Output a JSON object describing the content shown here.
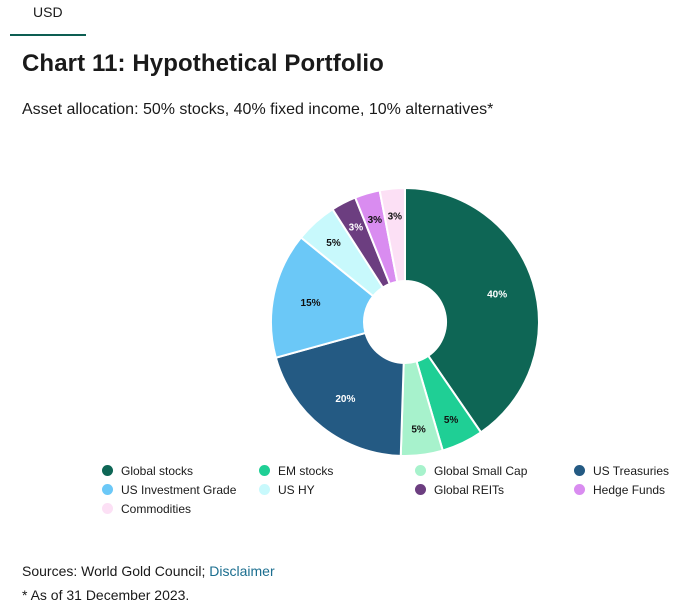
{
  "tab": {
    "label": "USD"
  },
  "header": {
    "title": "Chart 11: Hypothetical Portfolio",
    "subtitle": "Asset allocation: 50% stocks, 40% fixed income, 10% alternatives*"
  },
  "chart_data": {
    "type": "pie",
    "donut": true,
    "title": "Chart 11: Hypothetical Portfolio",
    "subtitle": "Asset allocation: 50% stocks, 40% fixed income, 10% alternatives*",
    "legend_position": "bottom",
    "slices": [
      {
        "name": "Global stocks",
        "value": 40,
        "label": "40%",
        "color": "#0e6655"
      },
      {
        "name": "EM stocks",
        "value": 5,
        "label": "5%",
        "color": "#1fcf95"
      },
      {
        "name": "Global Small Cap",
        "value": 5,
        "label": "5%",
        "color": "#a7f2cc"
      },
      {
        "name": "US Treasuries",
        "value": 20,
        "label": "20%",
        "color": "#245a83"
      },
      {
        "name": "US Investment Grade",
        "value": 15,
        "label": "15%",
        "color": "#6bc8f7"
      },
      {
        "name": "US HY",
        "value": 5,
        "label": "5%",
        "color": "#c8f9fc"
      },
      {
        "name": "Global REITs",
        "value": 3,
        "label": "3%",
        "color": "#6c3e80"
      },
      {
        "name": "Hedge Funds",
        "value": 3,
        "label": "3%",
        "color": "#d98cf0"
      },
      {
        "name": "Commodities",
        "value": 3,
        "label": "3%",
        "color": "#fce0f5"
      }
    ]
  },
  "footer": {
    "sources_prefix": "Sources: World Gold Council; ",
    "disclaimer_link": "Disclaimer",
    "footnote": "* As of 31 December 2023."
  }
}
